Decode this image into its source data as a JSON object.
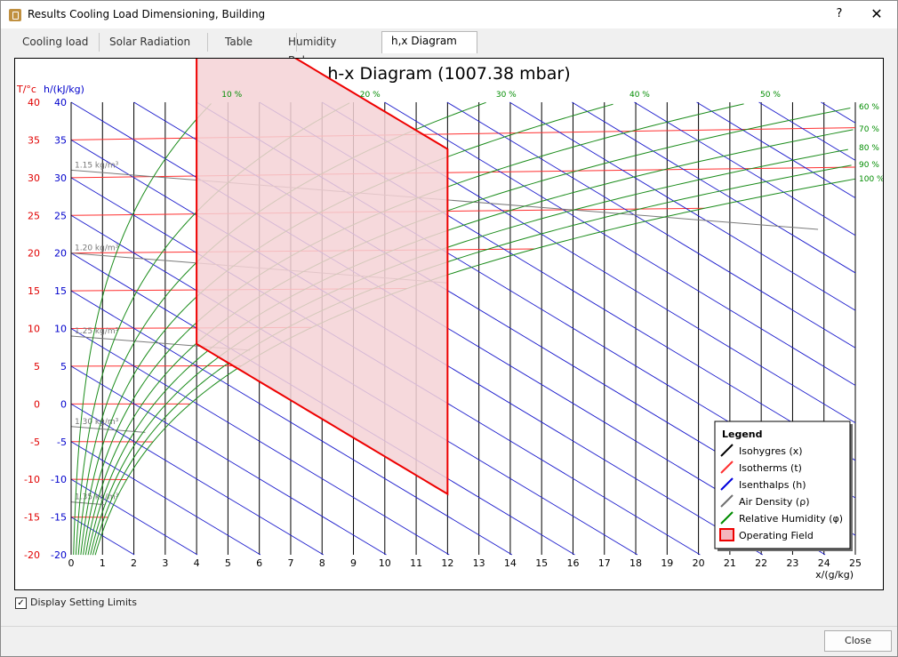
{
  "window": {
    "title": "Results Cooling Load Dimensioning, Building",
    "help_label": "?",
    "close_label": "✕"
  },
  "tabs": [
    {
      "label": "Cooling load"
    },
    {
      "label": "Solar Radiation"
    },
    {
      "label": "Table"
    },
    {
      "label": "Humidity Balance"
    },
    {
      "label": "h,x Diagram"
    }
  ],
  "active_tab": 4,
  "chart_data": {
    "type": "line",
    "title": "h-x Diagram (1007.38 mbar)",
    "left_axis_labels": {
      "temperature": "T/°c",
      "enthalpy": "h/(kJ/kg)"
    },
    "xlabel": "x/(g/kg)",
    "xlim": [
      0,
      25
    ],
    "ylim": [
      -20,
      40
    ],
    "x_ticks": [
      0,
      1,
      2,
      3,
      4,
      5,
      6,
      7,
      8,
      9,
      10,
      11,
      12,
      13,
      14,
      15,
      16,
      17,
      18,
      19,
      20,
      21,
      22,
      23,
      24,
      25
    ],
    "t_ticks": [
      40,
      35,
      30,
      25,
      20,
      15,
      10,
      5,
      0,
      -5,
      -10,
      -15,
      -20
    ],
    "h_ticks": [
      40,
      35,
      30,
      25,
      20,
      15,
      10,
      5,
      0,
      -5,
      -10,
      -15,
      -20
    ],
    "pressure_mbar": 1007.38,
    "isotherms_c": [
      -15,
      -10,
      -5,
      0,
      5,
      10,
      15,
      20,
      25,
      30,
      35
    ],
    "isenthalps_kj_per_kg": [
      -20,
      -15,
      -10,
      -5,
      0,
      5,
      10,
      15,
      20,
      25,
      30,
      35,
      40,
      45,
      50,
      55,
      60,
      65,
      70,
      75,
      80,
      85,
      90,
      95,
      100,
      105,
      110,
      115
    ],
    "air_density_labels": [
      "1.15 kg/m³",
      "1.20 kg/m³",
      "1.25 kg/m³",
      "1.30 kg/m³",
      "1.35 kg/m³"
    ],
    "relative_humidity_percent": [
      10,
      20,
      30,
      40,
      50,
      60,
      70,
      80,
      90,
      100
    ],
    "rh_top_labels": [
      "10 %",
      "20 %",
      "30 %",
      "40 %",
      "50 %"
    ],
    "rh_right_labels": [
      "60 %",
      "70 %",
      "80 %",
      "90 %",
      "100 %"
    ],
    "operating_field": {
      "x_range": [
        4,
        12
      ],
      "h_range": [
        18,
        64
      ]
    },
    "legend": {
      "title": "Legend",
      "items": [
        {
          "label": "Isohygres (x)",
          "color": "#000000"
        },
        {
          "label": "Isotherms (t)",
          "color": "#ff3030"
        },
        {
          "label": "Isenthalps (h)",
          "color": "#0000dd"
        },
        {
          "label": "Air Density (ρ)",
          "color": "#707070"
        },
        {
          "label": "Relative Humidity (φ)",
          "color": "#008c00"
        },
        {
          "label": "Operating Field",
          "color": "#ff0000"
        }
      ]
    },
    "colors": {
      "t_axis": "#e00000",
      "h_axis": "#0000cc",
      "rh": "#008c00",
      "field_fill": "#f4d2d6"
    }
  },
  "footer": {
    "display_limits_label": "Display Setting Limits",
    "display_limits_checked": true,
    "close_label": "Close"
  }
}
